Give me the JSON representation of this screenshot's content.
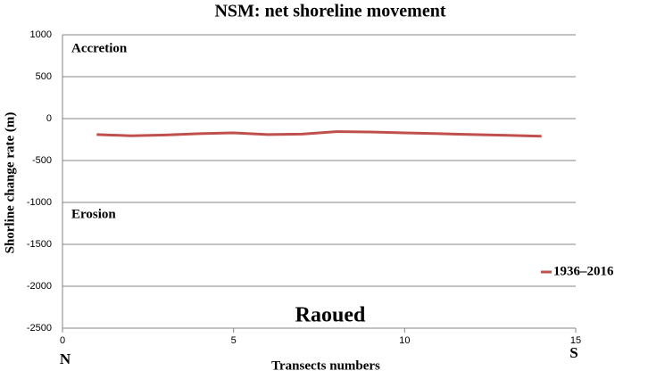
{
  "chart_data": {
    "type": "line",
    "title": "NSM: net shoreline movement",
    "x_label": "Transects numbers",
    "y_label": "Shorline change rate (m)",
    "x": [
      1,
      2,
      3,
      4,
      5,
      6,
      7,
      8,
      9,
      10,
      11,
      12,
      13,
      14
    ],
    "series": [
      {
        "name": "1936–2016",
        "color": "#c0504d",
        "values": [
          -190,
          -205,
          -195,
          -180,
          -170,
          -190,
          -185,
          -155,
          -160,
          -170,
          -180,
          -190,
          -200,
          -210
        ]
      }
    ],
    "xlim": [
      0,
      15
    ],
    "xticks": [
      0,
      5,
      10,
      15
    ],
    "ylim": [
      -2500,
      1000
    ],
    "yticks": [
      -2500,
      -2000,
      -1500,
      -1000,
      -500,
      0,
      500,
      1000
    ],
    "grid": true,
    "legend": "right",
    "annotations": [
      "Accretion",
      "Erosion",
      "Raoued",
      "N",
      "S"
    ]
  }
}
